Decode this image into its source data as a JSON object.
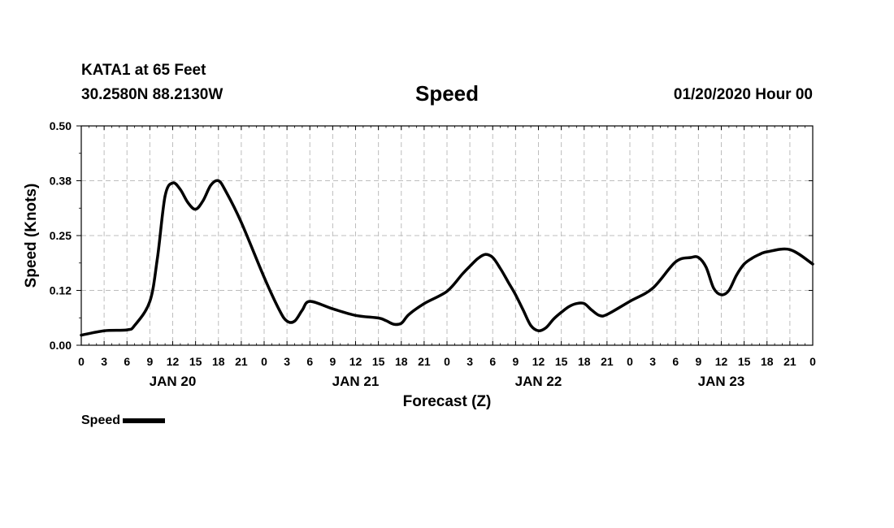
{
  "header": {
    "station": "KATA1 at 65 Feet",
    "coords": "30.2580N 88.2130W",
    "title": "Speed",
    "datetime": "01/20/2020 Hour 00"
  },
  "legend": {
    "label": "Speed"
  },
  "colors": {
    "line": "#000000",
    "grid": "#bdbdbd",
    "background": "#ffffff"
  },
  "chart_data": {
    "type": "line",
    "title": "Speed",
    "xlabel": "Forecast (Z)",
    "ylabel": "Speed (Knots)",
    "xlim": [
      0,
      96
    ],
    "ylim": [
      0,
      0.5
    ],
    "grid": true,
    "legend_position": "bottom-left",
    "y_ticks": [
      0.0,
      0.125,
      0.25,
      0.375,
      0.5
    ],
    "y_tick_labels": [
      "0.00",
      "0.12",
      "0.25",
      "0.38",
      "0.50"
    ],
    "x_ticks": [
      0,
      3,
      6,
      9,
      12,
      15,
      18,
      21,
      24,
      27,
      30,
      33,
      36,
      39,
      42,
      45,
      48,
      51,
      54,
      57,
      60,
      63,
      66,
      69,
      72,
      75,
      78,
      81,
      84,
      87,
      90,
      93,
      96
    ],
    "x_tick_labels": [
      "0",
      "3",
      "6",
      "9",
      "12",
      "15",
      "18",
      "21",
      "0",
      "3",
      "6",
      "9",
      "12",
      "15",
      "18",
      "21",
      "0",
      "3",
      "6",
      "9",
      "12",
      "15",
      "18",
      "21",
      "0",
      "3",
      "6",
      "9",
      "12",
      "15",
      "18",
      "21",
      "0"
    ],
    "day_labels": [
      {
        "x": 12,
        "label": "JAN 20"
      },
      {
        "x": 36,
        "label": "JAN 21"
      },
      {
        "x": 60,
        "label": "JAN 22"
      },
      {
        "x": 84,
        "label": "JAN 23"
      }
    ],
    "series": [
      {
        "name": "Speed",
        "x": [
          0,
          3,
          6,
          7,
          9,
          10,
          11,
          12,
          13,
          14,
          15,
          16,
          17,
          18,
          19,
          21,
          24,
          26,
          27,
          28,
          29,
          30,
          33,
          36,
          39,
          40,
          41,
          42,
          43,
          45,
          48,
          50,
          51,
          52,
          53,
          54,
          55,
          56,
          57,
          58,
          59,
          60,
          61,
          62,
          63,
          64,
          65,
          66,
          67,
          68,
          69,
          72,
          75,
          78,
          80,
          81,
          82,
          83,
          84,
          85,
          86,
          87,
          88,
          89,
          90,
          93,
          96
        ],
        "y": [
          0.023,
          0.033,
          0.035,
          0.045,
          0.1,
          0.2,
          0.34,
          0.37,
          0.355,
          0.325,
          0.31,
          0.33,
          0.365,
          0.375,
          0.35,
          0.28,
          0.155,
          0.08,
          0.055,
          0.055,
          0.08,
          0.1,
          0.083,
          0.068,
          0.062,
          0.056,
          0.048,
          0.05,
          0.07,
          0.095,
          0.123,
          0.162,
          0.18,
          0.197,
          0.207,
          0.2,
          0.175,
          0.145,
          0.115,
          0.08,
          0.045,
          0.033,
          0.04,
          0.06,
          0.075,
          0.088,
          0.095,
          0.095,
          0.08,
          0.068,
          0.07,
          0.1,
          0.13,
          0.19,
          0.2,
          0.2,
          0.178,
          0.13,
          0.115,
          0.125,
          0.16,
          0.185,
          0.198,
          0.207,
          0.213,
          0.218,
          0.185
        ]
      }
    ]
  }
}
